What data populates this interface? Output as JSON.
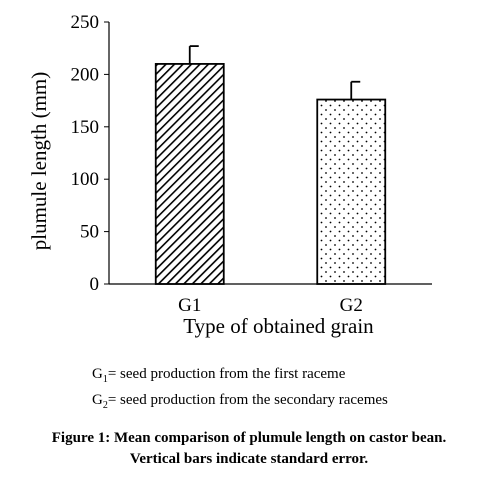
{
  "chart_data": {
    "type": "bar",
    "categories": [
      "G1",
      "G2"
    ],
    "values": [
      210,
      176
    ],
    "error": [
      17,
      17
    ],
    "patterns": [
      "diagonal-hatch",
      "dots"
    ],
    "title": "",
    "xlabel": "Type of obtained grain",
    "ylabel": "plumule length (mm)",
    "ylim": [
      0,
      250
    ],
    "yticks": [
      0,
      50,
      100,
      150,
      200,
      250
    ],
    "grid": false
  },
  "notes": [
    {
      "prefix": "G",
      "sub": "1",
      "text": "= seed production from the first raceme"
    },
    {
      "prefix": "G",
      "sub": "2",
      "text": "= seed production from the secondary racemes"
    }
  ],
  "caption": {
    "line1": "Figure 1: Mean comparison of plumule length on castor bean.",
    "line2": "Vertical bars indicate standard error."
  }
}
